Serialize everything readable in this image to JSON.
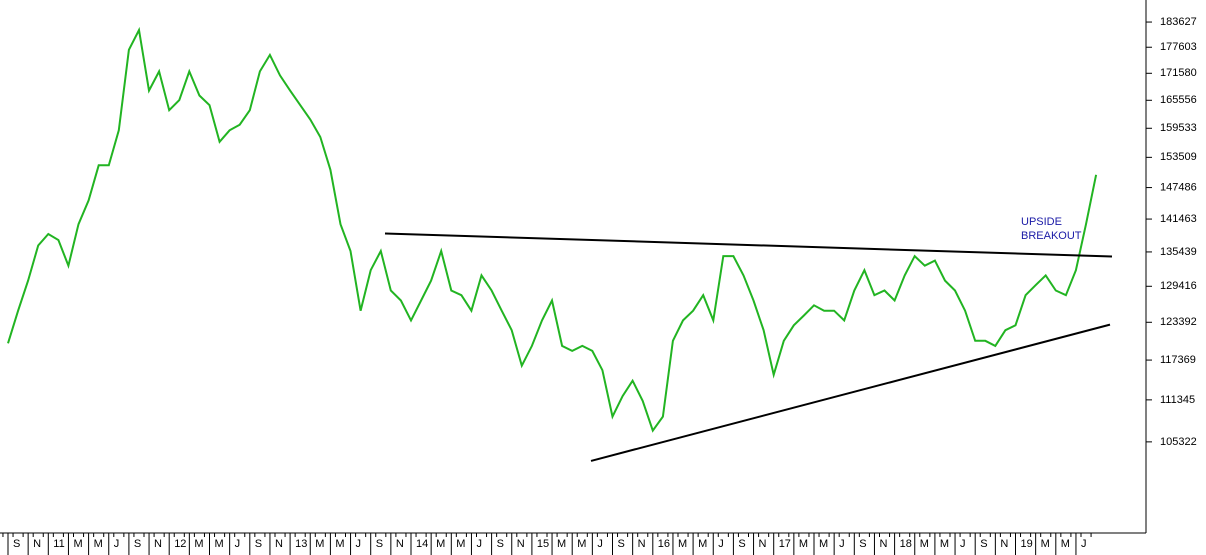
{
  "chart_data": {
    "type": "line",
    "log_scale": true,
    "color": "#22b422",
    "ylim": [
      93350,
      189066
    ],
    "yticks": [
      105322,
      111345,
      117369,
      123392,
      129416,
      135439,
      141463,
      147486,
      153509,
      159533,
      165556,
      171580,
      177603,
      183627
    ],
    "categories": [
      null,
      "S",
      null,
      "N",
      null,
      "11",
      null,
      "M",
      null,
      "M",
      null,
      "J",
      null,
      "S",
      null,
      "N",
      null,
      "12",
      null,
      "M",
      null,
      "M",
      null,
      "J",
      null,
      "S",
      null,
      "N",
      null,
      "13",
      null,
      "M",
      null,
      "M",
      null,
      "J",
      null,
      "S",
      null,
      "N",
      null,
      "14",
      null,
      "M",
      null,
      "M",
      null,
      "J",
      null,
      "S",
      null,
      "N",
      null,
      "15",
      null,
      "M",
      null,
      "M",
      null,
      "J",
      null,
      "S",
      null,
      "N",
      null,
      "16",
      null,
      "M",
      null,
      "M",
      null,
      "J",
      null,
      "S",
      null,
      "N",
      null,
      "17",
      null,
      "M",
      null,
      "M",
      null,
      "J",
      null,
      "S",
      null,
      "N",
      null,
      "18",
      null,
      "M",
      null,
      "M",
      null,
      "J",
      null,
      "S",
      null,
      "N",
      null,
      "19",
      null,
      "M",
      null,
      "M",
      null,
      "J",
      null
    ],
    "values": [
      120000,
      125300,
      130400,
      136600,
      138700,
      137600,
      133000,
      140500,
      145000,
      151900,
      151900,
      159100,
      177000,
      181700,
      167700,
      172000,
      163400,
      165600,
      172000,
      166600,
      164500,
      156700,
      159100,
      160300,
      163400,
      172000,
      175800,
      171100,
      167700,
      164500,
      161400,
      157700,
      151000,
      140500,
      135600,
      125300,
      132200,
      135600,
      128700,
      127000,
      123700,
      127000,
      130400,
      135600,
      128700,
      127900,
      125300,
      131300,
      128700,
      125300,
      122100,
      116500,
      119600,
      123700,
      127000,
      119600,
      118800,
      119600,
      118800,
      115800,
      108900,
      111900,
      114200,
      111200,
      106900,
      108900,
      120400,
      123700,
      125300,
      127900,
      123700,
      134700,
      134700,
      131300,
      127000,
      122100,
      115100,
      120400,
      122900,
      124500,
      126200,
      125300,
      125300,
      123700,
      128700,
      132200,
      127900,
      128700,
      127000,
      131300,
      134700,
      133000,
      133900,
      130400,
      128700,
      125300,
      120400,
      120400,
      119600,
      122100,
      122900,
      127900,
      129600,
      131300,
      128700,
      127900,
      132200,
      140500,
      150000
    ],
    "trendlines": [
      {
        "start": 138790,
        "end": 134620
      },
      {
        "start": 102700,
        "end": 123010
      }
    ],
    "annotation": "UPSIDE BREAKOUT"
  }
}
